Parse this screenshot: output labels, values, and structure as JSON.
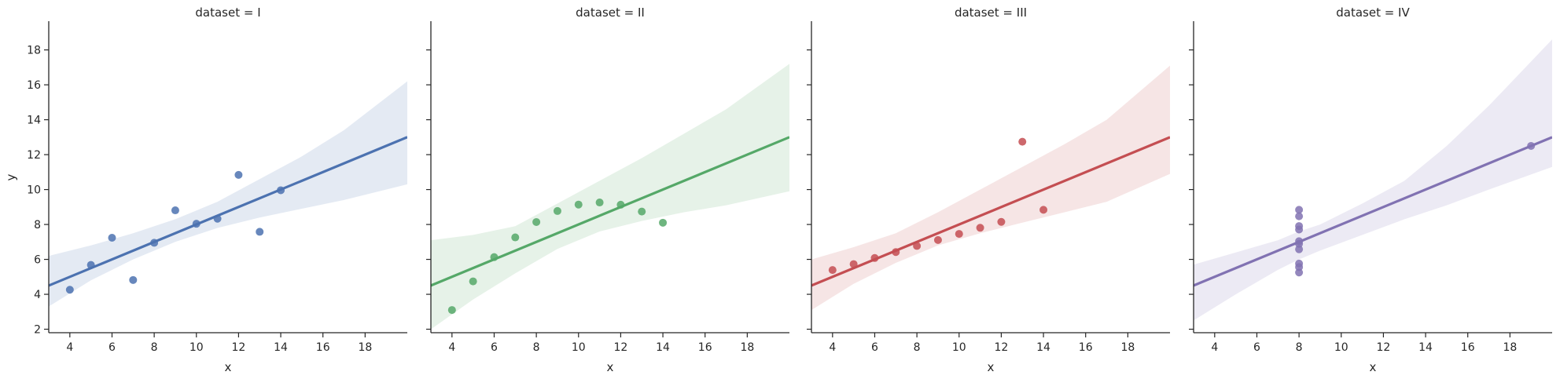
{
  "chart_data": [
    {
      "type": "scatter",
      "title": "dataset = I",
      "xlabel": "x",
      "ylabel": "y",
      "color": "#4c72b0",
      "points": {
        "x": [
          10,
          8,
          13,
          9,
          11,
          14,
          6,
          4,
          12,
          7,
          5
        ],
        "y": [
          8.04,
          6.95,
          7.58,
          8.81,
          8.33,
          9.96,
          7.24,
          4.26,
          10.84,
          4.82,
          5.68
        ]
      },
      "fit": {
        "slope": 0.5001,
        "intercept": 3.0001
      },
      "ci": {
        "x": [
          3,
          5,
          7,
          9,
          11,
          13,
          15,
          17,
          20
        ],
        "lower": [
          3.3,
          4.8,
          6.0,
          7.0,
          7.8,
          8.4,
          8.9,
          9.4,
          10.3
        ],
        "upper": [
          6.2,
          6.8,
          7.5,
          8.3,
          9.3,
          10.6,
          11.9,
          13.4,
          16.2
        ]
      }
    },
    {
      "type": "scatter",
      "title": "dataset = II",
      "xlabel": "x",
      "ylabel": "",
      "color": "#55a868",
      "points": {
        "x": [
          10,
          8,
          13,
          9,
          11,
          14,
          6,
          4,
          12,
          7,
          5
        ],
        "y": [
          9.14,
          8.14,
          8.74,
          8.77,
          9.26,
          8.1,
          6.13,
          3.1,
          9.13,
          7.26,
          4.74
        ]
      },
      "fit": {
        "slope": 0.5,
        "intercept": 3.0009
      },
      "ci": {
        "x": [
          3,
          5,
          7,
          9,
          11,
          13,
          15,
          17,
          20
        ],
        "lower": [
          2.0,
          3.7,
          5.2,
          6.6,
          7.6,
          8.2,
          8.7,
          9.1,
          9.9
        ],
        "upper": [
          7.1,
          7.4,
          7.9,
          9.2,
          10.5,
          11.8,
          13.2,
          14.6,
          17.2
        ]
      }
    },
    {
      "type": "scatter",
      "title": "dataset = III",
      "xlabel": "x",
      "ylabel": "",
      "color": "#c44e52",
      "points": {
        "x": [
          10,
          8,
          13,
          9,
          11,
          14,
          6,
          4,
          12,
          7,
          5
        ],
        "y": [
          7.46,
          6.77,
          12.74,
          7.11,
          7.81,
          8.84,
          6.08,
          5.39,
          8.15,
          6.42,
          5.73
        ]
      },
      "fit": {
        "slope": 0.4997,
        "intercept": 3.0025
      },
      "ci": {
        "x": [
          3,
          5,
          7,
          9,
          11,
          13,
          15,
          17,
          20
        ],
        "lower": [
          3.1,
          4.6,
          5.8,
          6.8,
          7.5,
          8.1,
          8.7,
          9.3,
          10.9
        ],
        "upper": [
          6.0,
          6.7,
          7.5,
          8.7,
          10.0,
          11.3,
          12.6,
          14.0,
          17.1
        ]
      }
    },
    {
      "type": "scatter",
      "title": "dataset = IV",
      "xlabel": "x",
      "ylabel": "",
      "color": "#8172b2",
      "points": {
        "x": [
          8,
          8,
          8,
          8,
          8,
          8,
          8,
          19,
          8,
          8,
          8
        ],
        "y": [
          6.58,
          5.76,
          7.71,
          8.84,
          8.47,
          7.04,
          5.25,
          12.5,
          5.56,
          7.91,
          6.89
        ]
      },
      "fit": {
        "slope": 0.4999,
        "intercept": 3.0017
      },
      "ci": {
        "x": [
          3,
          5,
          7,
          8,
          9,
          11,
          13,
          15,
          17,
          20
        ],
        "lower": [
          2.5,
          4.0,
          5.4,
          6.0,
          6.5,
          7.4,
          8.3,
          9.1,
          10.0,
          11.3
        ],
        "upper": [
          5.7,
          6.4,
          7.1,
          7.6,
          8.0,
          9.2,
          10.5,
          12.5,
          14.8,
          18.6
        ]
      }
    }
  ],
  "axes": {
    "xlim": [
      3,
      20
    ],
    "ylim": [
      1.8,
      19.6
    ],
    "xticks": [
      "4",
      "6",
      "8",
      "10",
      "12",
      "14",
      "16",
      "18"
    ],
    "yticks": [
      "2",
      "4",
      "6",
      "8",
      "10",
      "12",
      "14",
      "16",
      "18"
    ],
    "shared_y": true,
    "grid": false
  }
}
